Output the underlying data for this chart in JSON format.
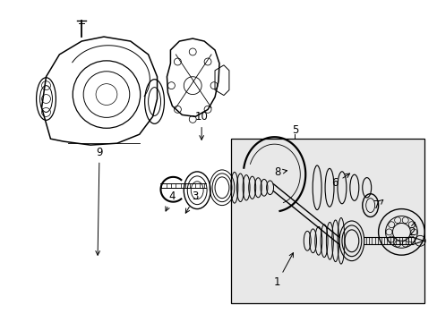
{
  "background_color": "#ffffff",
  "line_color": "#000000",
  "label_color": "#000000",
  "inset_bg": "#e8e8e8",
  "fig_width": 4.89,
  "fig_height": 3.6,
  "dpi": 100
}
